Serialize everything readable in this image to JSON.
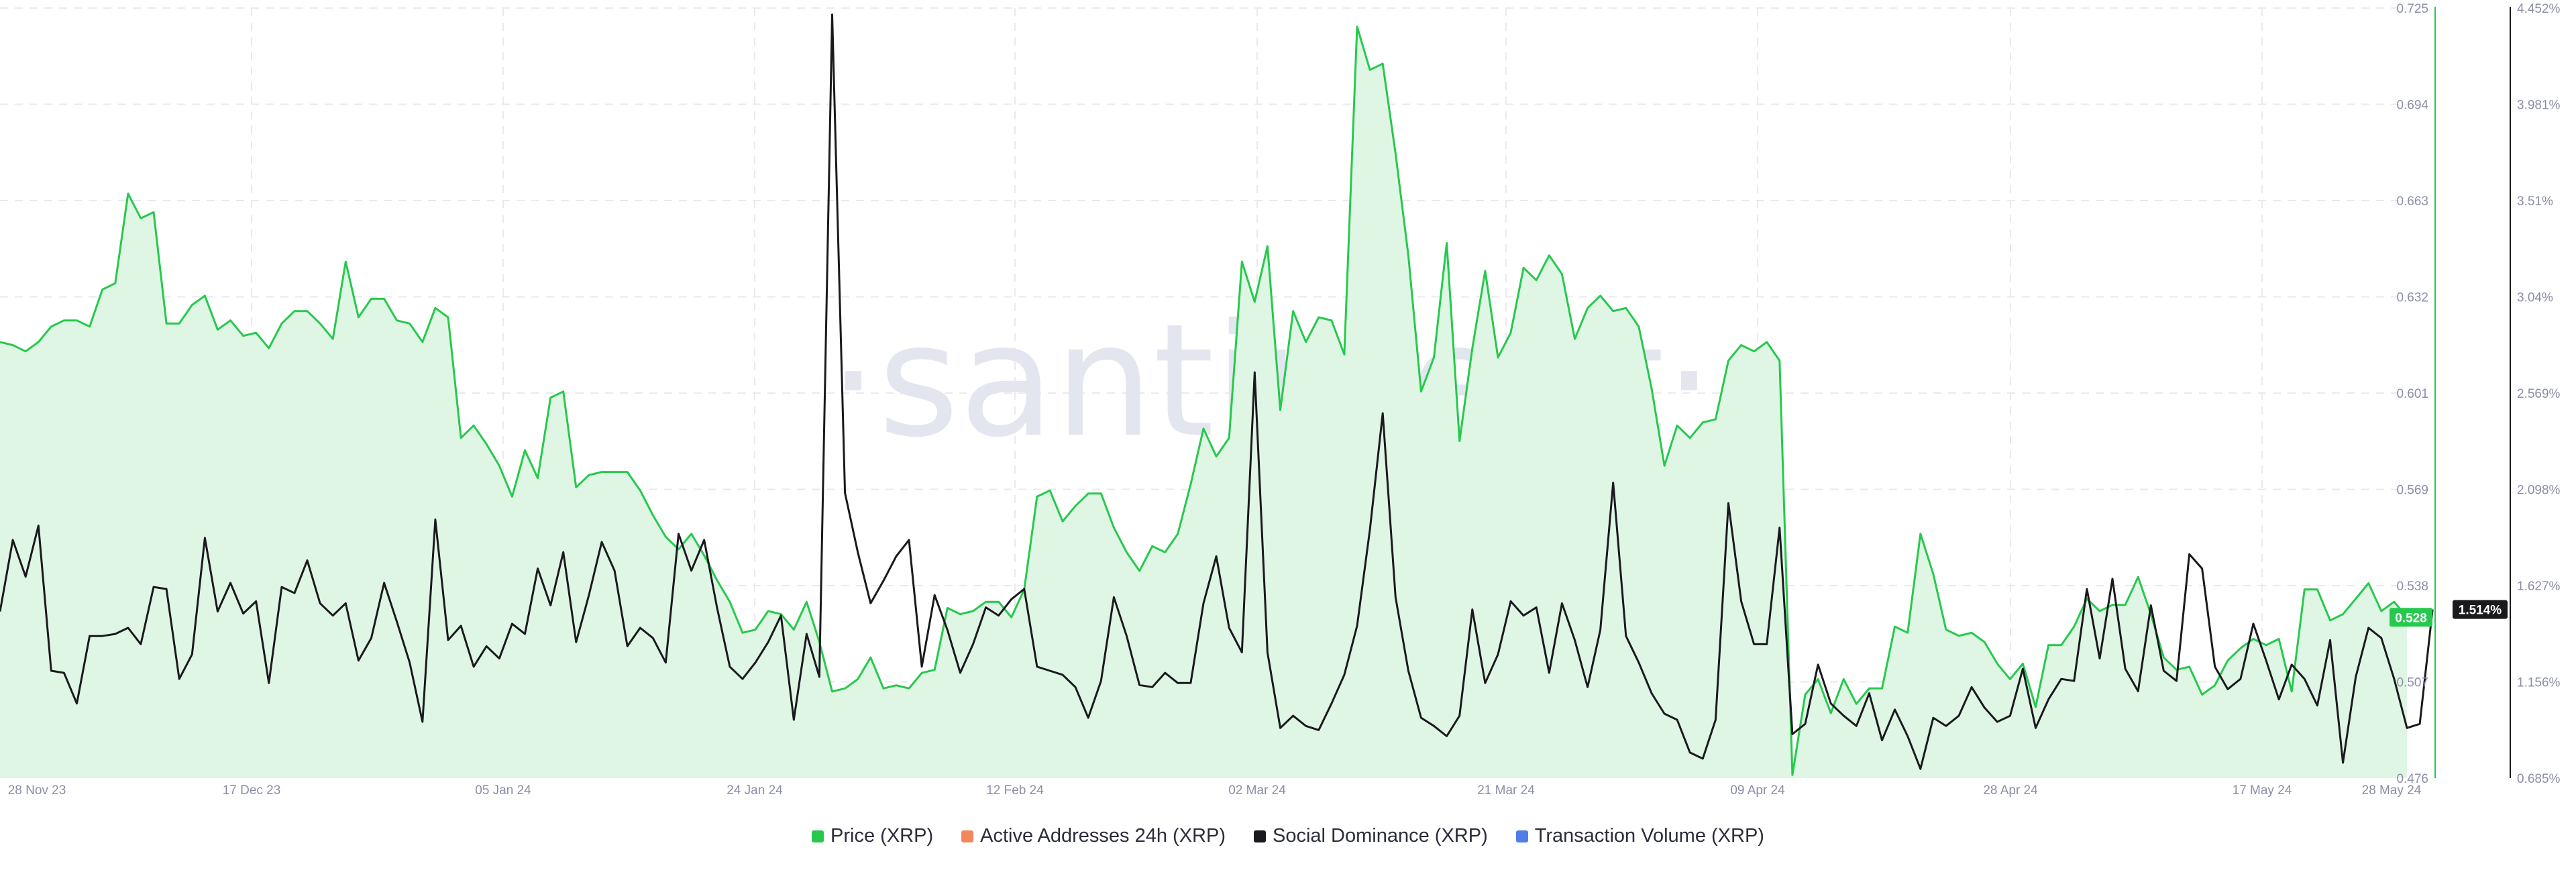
{
  "watermark": "·santiment·",
  "chart_data": {
    "type": "line",
    "x_tick_labels": [
      "28 Nov 23",
      "17 Dec 23",
      "05 Jan 24",
      "24 Jan 24",
      "12 Feb 24",
      "02 Mar 24",
      "21 Mar 24",
      "09 Apr 24",
      "28 Apr 24",
      "17 May 24",
      "28 May 24"
    ],
    "y_left_ticks": [
      "0.725",
      "0.694",
      "0.663",
      "0.632",
      "0.601",
      "0.569",
      "0.538",
      "0.507",
      "0.476"
    ],
    "y_right_ticks": [
      "4.452%",
      "3.981%",
      "3.51%",
      "3.04%",
      "2.569%",
      "2.098%",
      "1.627%",
      "1.156%",
      "0.685%"
    ],
    "y_left_range": [
      0.476,
      0.725
    ],
    "y_right_range": [
      0.685,
      4.452
    ],
    "grid": true,
    "legend_position": "bottom-center",
    "series": [
      {
        "name": "Price (XRP)",
        "axis": "left",
        "color": "#26c94d",
        "fill": "#e0f6e5",
        "last_value_label": "0.528",
        "values": [
          0.617,
          0.616,
          0.614,
          0.617,
          0.622,
          0.624,
          0.624,
          0.622,
          0.634,
          0.636,
          0.665,
          0.657,
          0.659,
          0.623,
          0.623,
          0.629,
          0.632,
          0.621,
          0.624,
          0.619,
          0.62,
          0.615,
          0.623,
          0.627,
          0.627,
          0.623,
          0.618,
          0.643,
          0.625,
          0.631,
          0.631,
          0.624,
          0.623,
          0.617,
          0.628,
          0.625,
          0.586,
          0.59,
          0.584,
          0.577,
          0.567,
          0.582,
          0.573,
          0.599,
          0.601,
          0.57,
          0.574,
          0.575,
          0.575,
          0.575,
          0.569,
          0.561,
          0.554,
          0.55,
          0.555,
          0.548,
          0.54,
          0.533,
          0.523,
          0.524,
          0.53,
          0.529,
          0.524,
          0.533,
          0.52,
          0.504,
          0.505,
          0.508,
          0.515,
          0.505,
          0.506,
          0.505,
          0.51,
          0.511,
          0.531,
          0.529,
          0.53,
          0.533,
          0.533,
          0.528,
          0.537,
          0.567,
          0.569,
          0.559,
          0.564,
          0.568,
          0.568,
          0.557,
          0.549,
          0.543,
          0.551,
          0.549,
          0.555,
          0.571,
          0.589,
          0.58,
          0.586,
          0.643,
          0.63,
          0.648,
          0.595,
          0.627,
          0.617,
          0.625,
          0.624,
          0.613,
          0.719,
          0.705,
          0.707,
          0.678,
          0.645,
          0.601,
          0.612,
          0.649,
          0.585,
          0.615,
          0.64,
          0.612,
          0.62,
          0.641,
          0.637,
          0.645,
          0.639,
          0.618,
          0.628,
          0.632,
          0.627,
          0.628,
          0.622,
          0.602,
          0.577,
          0.59,
          0.586,
          0.591,
          0.592,
          0.611,
          0.616,
          0.614,
          0.617,
          0.611,
          0.477,
          0.503,
          0.508,
          0.497,
          0.508,
          0.5,
          0.505,
          0.505,
          0.525,
          0.523,
          0.555,
          0.542,
          0.524,
          0.522,
          0.523,
          0.52,
          0.513,
          0.508,
          0.513,
          0.499,
          0.519,
          0.519,
          0.525,
          0.534,
          0.53,
          0.532,
          0.532,
          0.541,
          0.529,
          0.515,
          0.511,
          0.512,
          0.503,
          0.506,
          0.514,
          0.518,
          0.521,
          0.519,
          0.521,
          0.504,
          0.537,
          0.537,
          0.527,
          0.529,
          0.534,
          0.539,
          0.53,
          0.533,
          0.528
        ]
      },
      {
        "name": "Active Addresses 24h (XRP)",
        "axis": "right",
        "color": "#f2875c",
        "values": []
      },
      {
        "name": "Social Dominance (XRP)",
        "axis": "right",
        "color": "#1a1a1e",
        "last_value_label": "1.514%",
        "values": [
          1.5,
          1.85,
          1.67,
          1.92,
          1.21,
          1.2,
          1.05,
          1.38,
          1.38,
          1.39,
          1.42,
          1.34,
          1.62,
          1.61,
          1.17,
          1.29,
          1.86,
          1.5,
          1.64,
          1.49,
          1.55,
          1.15,
          1.62,
          1.59,
          1.75,
          1.54,
          1.48,
          1.54,
          1.26,
          1.37,
          1.64,
          1.45,
          1.25,
          0.96,
          1.95,
          1.36,
          1.43,
          1.23,
          1.33,
          1.27,
          1.44,
          1.39,
          1.71,
          1.53,
          1.79,
          1.35,
          1.58,
          1.84,
          1.7,
          1.33,
          1.42,
          1.37,
          1.25,
          1.88,
          1.7,
          1.85,
          1.52,
          1.23,
          1.17,
          1.25,
          1.35,
          1.48,
          0.97,
          1.39,
          1.18,
          4.42,
          2.08,
          1.79,
          1.54,
          1.65,
          1.77,
          1.85,
          1.23,
          1.58,
          1.41,
          1.2,
          1.34,
          1.52,
          1.48,
          1.56,
          1.61,
          1.23,
          1.21,
          1.19,
          1.13,
          0.98,
          1.16,
          1.57,
          1.38,
          1.14,
          1.13,
          1.2,
          1.15,
          1.15,
          1.54,
          1.77,
          1.42,
          1.3,
          2.67,
          1.3,
          0.93,
          0.99,
          0.94,
          0.92,
          1.05,
          1.19,
          1.43,
          1.9,
          2.47,
          1.57,
          1.21,
          0.98,
          0.94,
          0.89,
          0.99,
          1.51,
          1.15,
          1.29,
          1.55,
          1.48,
          1.52,
          1.2,
          1.54,
          1.36,
          1.13,
          1.41,
          2.13,
          1.38,
          1.25,
          1.1,
          1.0,
          0.97,
          0.81,
          0.78,
          0.97,
          2.03,
          1.55,
          1.34,
          1.34,
          1.91,
          0.9,
          0.95,
          1.24,
          1.05,
          0.99,
          0.94,
          1.1,
          0.87,
          1.02,
          0.89,
          0.73,
          0.98,
          0.94,
          0.99,
          1.13,
          1.03,
          0.96,
          0.99,
          1.22,
          0.93,
          1.07,
          1.17,
          1.16,
          1.61,
          1.27,
          1.66,
          1.22,
          1.11,
          1.53,
          1.21,
          1.16,
          1.78,
          1.71,
          1.23,
          1.12,
          1.17,
          1.44,
          1.26,
          1.07,
          1.24,
          1.17,
          1.04,
          1.36,
          0.76,
          1.18,
          1.42,
          1.37,
          1.17,
          0.93,
          0.95,
          1.51
        ]
      },
      {
        "name": "Transaction Volume (XRP)",
        "axis": "right",
        "color": "#4f7ee6",
        "values": []
      }
    ]
  }
}
